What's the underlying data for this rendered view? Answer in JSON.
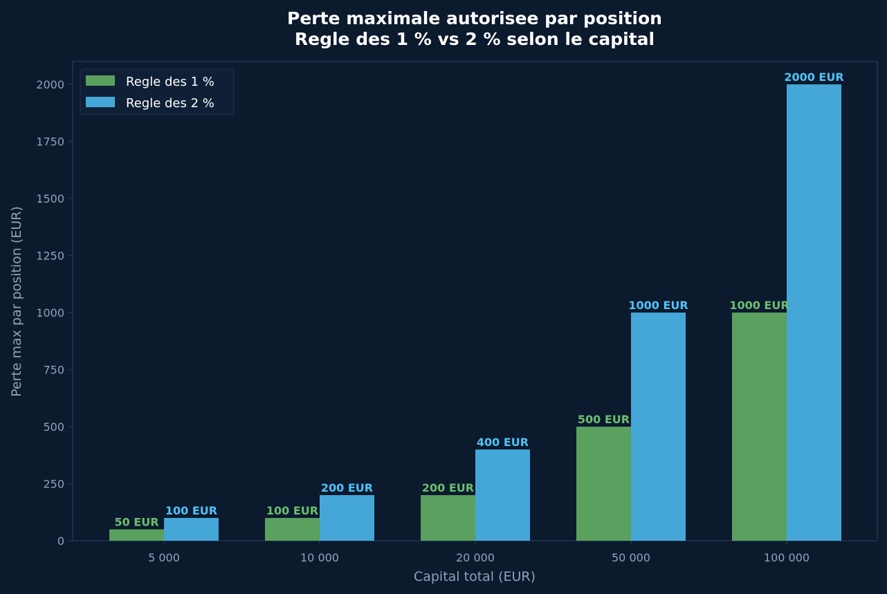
{
  "chart_data": {
    "type": "bar",
    "title": "Perte maximale autorisee par position",
    "subtitle": "Regle des 1 % vs 2 % selon le capital",
    "xlabel": "Capital total (EUR)",
    "ylabel": "Perte max par position (EUR)",
    "categories": [
      "5 000",
      "10 000",
      "20 000",
      "50 000",
      "100 000"
    ],
    "ylim": [
      0,
      2100
    ],
    "yticks": [
      0,
      250,
      500,
      750,
      1000,
      1250,
      1500,
      1750,
      2000
    ],
    "grid": false,
    "legend_position": "top-left",
    "series": [
      {
        "name": "Regle des 1 %",
        "values": [
          50,
          100,
          200,
          500,
          1000
        ],
        "labels": [
          "50 EUR",
          "100 EUR",
          "200 EUR",
          "500 EUR",
          "1000 EUR"
        ],
        "color": "#5aa05e",
        "label_color": "#6dbf6f"
      },
      {
        "name": "Regle des 2 %",
        "values": [
          100,
          200,
          400,
          1000,
          2000
        ],
        "labels": [
          "100 EUR",
          "200 EUR",
          "400 EUR",
          "1000 EUR",
          "2000 EUR"
        ],
        "color": "#44a7d8",
        "label_color": "#4fc3f7"
      }
    ]
  },
  "colors": {
    "background": "#0c1a2e",
    "axes_frame": "#1e3550",
    "tick_text": "#8fa3b8",
    "title_text": "#ffffff",
    "legend_bg": "#0f1f35",
    "legend_border": "#1e3550"
  }
}
